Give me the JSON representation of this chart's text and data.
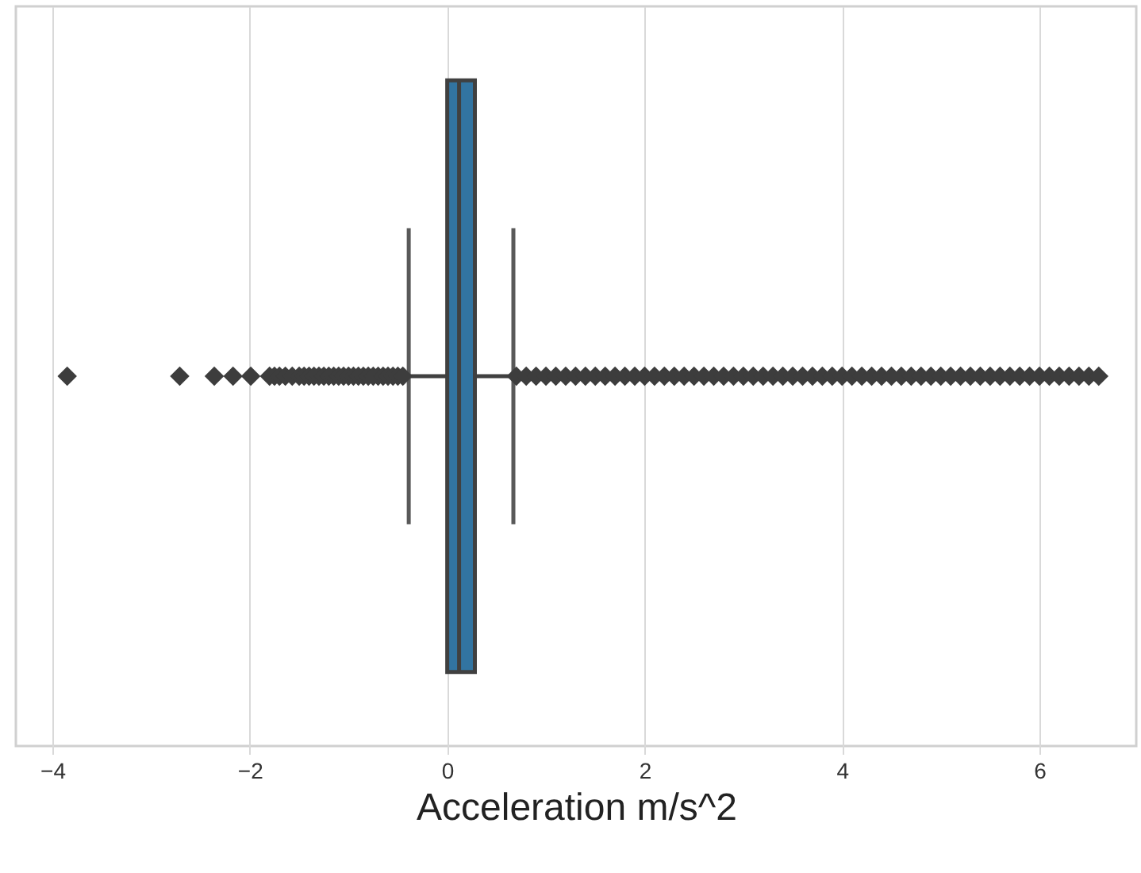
{
  "chart_data": {
    "type": "box",
    "orientation": "horizontal",
    "xlabel": "Acceleration m/s^2",
    "categories": [
      null
    ],
    "xlim": [
      -4.37,
      6.98
    ],
    "xticks": [
      -4,
      -2,
      0,
      2,
      4,
      6
    ],
    "grid": "x",
    "marker": "diamond",
    "series": [
      {
        "color": "#3274a1",
        "boxes": [
          {
            "low": -0.39,
            "q1": 0,
            "median": 0.12,
            "q3": 0.28,
            "high": 0.67,
            "outliers": [
              -3.85,
              -2.71,
              -2.36,
              -2.17,
              -1.99,
              -1.8,
              -1.75,
              -1.7,
              -1.64,
              -1.57,
              -1.5,
              -1.45,
              -1.4,
              -1.35,
              -1.3,
              -1.25,
              -1.2,
              -1.15,
              -1.1,
              -1.05,
              -1.0,
              -0.95,
              -0.9,
              -0.85,
              -0.8,
              -0.75,
              -0.7,
              -0.65,
              -0.6,
              -0.55,
              -0.5,
              -0.45,
              0.7,
              0.8,
              0.9,
              1.0,
              1.1,
              1.2,
              1.3,
              1.4,
              1.5,
              1.6,
              1.7,
              1.8,
              1.9,
              2.0,
              2.1,
              2.2,
              2.3,
              2.4,
              2.5,
              2.6,
              2.7,
              2.8,
              2.9,
              3.0,
              3.1,
              3.2,
              3.3,
              3.4,
              3.5,
              3.6,
              3.7,
              3.8,
              3.9,
              4.0,
              4.1,
              4.2,
              4.3,
              4.4,
              4.5,
              4.6,
              4.7,
              4.8,
              4.9,
              5.0,
              5.1,
              5.2,
              5.3,
              5.4,
              5.5,
              5.6,
              5.7,
              5.8,
              5.9,
              6.0,
              6.1,
              6.2,
              6.3,
              6.4,
              6.5,
              6.6
            ]
          }
        ]
      }
    ]
  }
}
